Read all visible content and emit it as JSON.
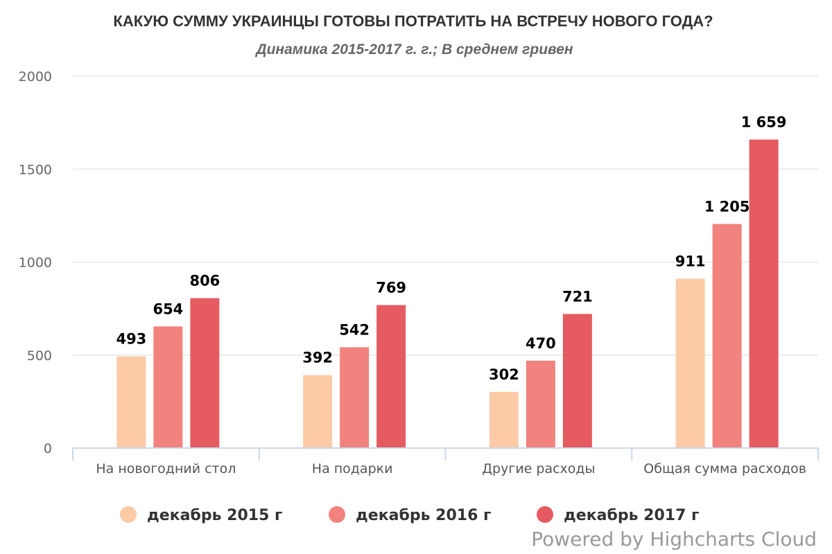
{
  "chart_data": {
    "type": "bar",
    "title": "КАКУЮ СУММУ УКРАИНЦЫ ГОТОВЫ ПОТРАТИТЬ НА ВСТРЕЧУ НОВОГО ГОДА?",
    "subtitle": "Динамика 2015-2017 г. г.; В среднем гривен",
    "categories": [
      "На новогодний стол",
      "На подарки",
      "Другие расходы",
      "Общая сумма расходов"
    ],
    "series": [
      {
        "name": "декабрь 2015 г",
        "color": "#fccba6",
        "values": [
          493,
          392,
          302,
          911
        ],
        "labels": [
          "493",
          "392",
          "302",
          "911"
        ]
      },
      {
        "name": "декабрь 2016 г",
        "color": "#f1827d",
        "values": [
          654,
          542,
          470,
          1205
        ],
        "labels": [
          "654",
          "542",
          "470",
          "1 205"
        ]
      },
      {
        "name": "декабрь 2017 г",
        "color": "#e55b61",
        "values": [
          806,
          769,
          721,
          1659
        ],
        "labels": [
          "806",
          "769",
          "721",
          "1 659"
        ]
      }
    ],
    "yticks": [
      "0",
      "500",
      "1000",
      "1500",
      "2000"
    ],
    "ylim": [
      0,
      2000
    ],
    "grid": true,
    "legend_position": "bottom-center"
  },
  "credits": "Powered by Highcharts Cloud"
}
